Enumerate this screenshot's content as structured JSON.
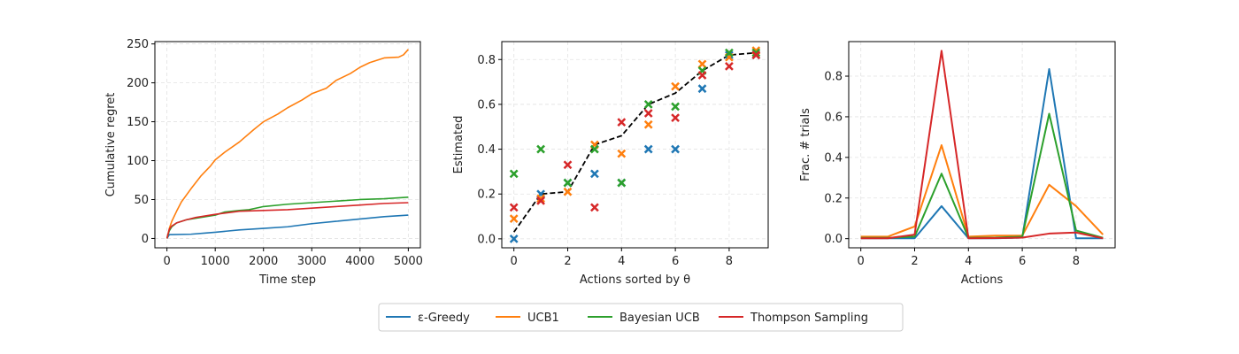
{
  "colors": {
    "epsilon_greedy": "#1f77b4",
    "ucb1": "#ff7f0e",
    "bayesian_ucb": "#2ca02c",
    "thompson_sampling": "#d62728",
    "true_theta": "#000000"
  },
  "legend": {
    "entries": [
      {
        "key": "epsilon_greedy",
        "label": "ε-Greedy"
      },
      {
        "key": "ucb1",
        "label": "UCB1"
      },
      {
        "key": "bayesian_ucb",
        "label": "Bayesian UCB"
      },
      {
        "key": "thompson_sampling",
        "label": "Thompson Sampling"
      }
    ]
  },
  "chart_data": [
    {
      "type": "line",
      "xlabel": "Time step",
      "ylabel": "Cumulative regret",
      "xlim": [
        -250,
        5250
      ],
      "ylim": [
        -12,
        253
      ],
      "xticks": [
        0,
        1000,
        2000,
        3000,
        4000,
        5000
      ],
      "yticks": [
        0,
        50,
        100,
        150,
        200,
        250
      ],
      "grid": true,
      "series": [
        {
          "key": "epsilon_greedy",
          "name": "ε-Greedy",
          "x": [
            0,
            50,
            100,
            500,
            800,
            1000,
            1500,
            2000,
            2500,
            3000,
            3500,
            4000,
            4500,
            5000
          ],
          "y": [
            0,
            5,
            5,
            5.5,
            7,
            8,
            11,
            13,
            15,
            19,
            22,
            25,
            28,
            30
          ]
        },
        {
          "key": "ucb1",
          "name": "UCB1",
          "x": [
            0,
            50,
            100,
            200,
            300,
            500,
            700,
            900,
            1000,
            1200,
            1500,
            1800,
            2000,
            2300,
            2500,
            2800,
            3000,
            3300,
            3500,
            3800,
            4000,
            4200,
            4500,
            4800,
            4900,
            5000
          ],
          "y": [
            0,
            13,
            22,
            35,
            47,
            64,
            80,
            93,
            101,
            111,
            124,
            140,
            150,
            160,
            168,
            178,
            186,
            193,
            203,
            212,
            220,
            226,
            232,
            233,
            236,
            243
          ]
        },
        {
          "key": "bayesian_ucb",
          "name": "Bayesian UCB",
          "x": [
            0,
            50,
            100,
            200,
            400,
            600,
            800,
            1000,
            1200,
            1500,
            1700,
            2000,
            2500,
            3000,
            3500,
            4000,
            4500,
            5000
          ],
          "y": [
            0,
            10,
            15,
            20,
            24,
            26,
            28,
            30,
            34,
            36,
            37,
            41,
            44,
            46,
            48,
            50,
            51,
            53
          ]
        },
        {
          "key": "thompson_sampling",
          "name": "Thompson Sampling",
          "x": [
            0,
            50,
            100,
            200,
            400,
            600,
            800,
            1000,
            1500,
            2000,
            2500,
            3000,
            3500,
            4000,
            4500,
            5000
          ],
          "y": [
            0,
            12,
            16,
            20,
            24,
            27,
            29,
            31,
            35,
            36,
            37,
            39,
            41,
            43,
            45,
            46
          ]
        }
      ]
    },
    {
      "type": "scatter",
      "xlabel": "Actions sorted by θ",
      "ylabel": "Estimated",
      "xlim": [
        -0.45,
        9.45
      ],
      "ylim": [
        -0.04,
        0.88
      ],
      "xticks": [
        0,
        2,
        4,
        6,
        8
      ],
      "yticks": [
        0.0,
        0.2,
        0.4,
        0.6,
        0.8
      ],
      "grid": true,
      "true_theta": {
        "key": "true_theta",
        "x": [
          0,
          1,
          2,
          3,
          4,
          5,
          6,
          7,
          8,
          9
        ],
        "y": [
          0.03,
          0.2,
          0.21,
          0.42,
          0.46,
          0.6,
          0.65,
          0.75,
          0.82,
          0.83
        ]
      },
      "series": [
        {
          "key": "epsilon_greedy",
          "name": "ε-Greedy",
          "x": [
            0,
            1,
            2,
            3,
            4,
            5,
            6,
            7,
            8,
            9
          ],
          "y": [
            0.0,
            0.2,
            0.25,
            0.29,
            0.25,
            0.4,
            0.4,
            0.67,
            0.82,
            0.82
          ]
        },
        {
          "key": "ucb1",
          "name": "UCB1",
          "x": [
            0,
            1,
            2,
            3,
            4,
            5,
            6,
            7,
            8,
            9
          ],
          "y": [
            0.09,
            0.18,
            0.21,
            0.42,
            0.38,
            0.51,
            0.68,
            0.78,
            0.81,
            0.84
          ]
        },
        {
          "key": "bayesian_ucb",
          "name": "Bayesian UCB",
          "x": [
            0,
            1,
            2,
            3,
            4,
            5,
            6,
            7,
            8,
            9
          ],
          "y": [
            0.29,
            0.4,
            0.25,
            0.4,
            0.25,
            0.6,
            0.59,
            0.75,
            0.83,
            0.83
          ]
        },
        {
          "key": "thompson_sampling",
          "name": "Thompson Sampling",
          "x": [
            0,
            1,
            2,
            3,
            4,
            5,
            6,
            7,
            8,
            9
          ],
          "y": [
            0.14,
            0.17,
            0.33,
            0.14,
            0.52,
            0.56,
            0.54,
            0.73,
            0.77,
            0.82
          ]
        }
      ]
    },
    {
      "type": "line",
      "xlabel": "Actions",
      "ylabel": "Frac. # trials",
      "xlim": [
        -0.45,
        9.45
      ],
      "ylim": [
        -0.045,
        0.97
      ],
      "xticks": [
        0,
        2,
        4,
        6,
        8
      ],
      "yticks": [
        0.0,
        0.2,
        0.4,
        0.6,
        0.8
      ],
      "grid": true,
      "series": [
        {
          "key": "epsilon_greedy",
          "name": "ε-Greedy",
          "x": [
            0,
            1,
            2,
            3,
            4,
            5,
            6,
            7,
            8,
            9
          ],
          "y": [
            0.002,
            0.002,
            0.002,
            0.16,
            0.002,
            0.002,
            0.005,
            0.835,
            0.002,
            0.002
          ]
        },
        {
          "key": "ucb1",
          "name": "UCB1",
          "x": [
            0,
            1,
            2,
            3,
            4,
            5,
            6,
            7,
            8,
            9
          ],
          "y": [
            0.01,
            0.01,
            0.06,
            0.46,
            0.01,
            0.015,
            0.015,
            0.265,
            0.16,
            0.02
          ]
        },
        {
          "key": "bayesian_ucb",
          "name": "Bayesian UCB",
          "x": [
            0,
            1,
            2,
            3,
            4,
            5,
            6,
            7,
            8,
            9
          ],
          "y": [
            0.004,
            0.004,
            0.01,
            0.32,
            0.004,
            0.005,
            0.01,
            0.615,
            0.04,
            0.004
          ]
        },
        {
          "key": "thompson_sampling",
          "name": "Thompson Sampling",
          "x": [
            0,
            1,
            2,
            3,
            4,
            5,
            6,
            7,
            8,
            9
          ],
          "y": [
            0.002,
            0.002,
            0.02,
            0.925,
            0.002,
            0.003,
            0.005,
            0.025,
            0.03,
            0.002
          ]
        }
      ]
    }
  ]
}
